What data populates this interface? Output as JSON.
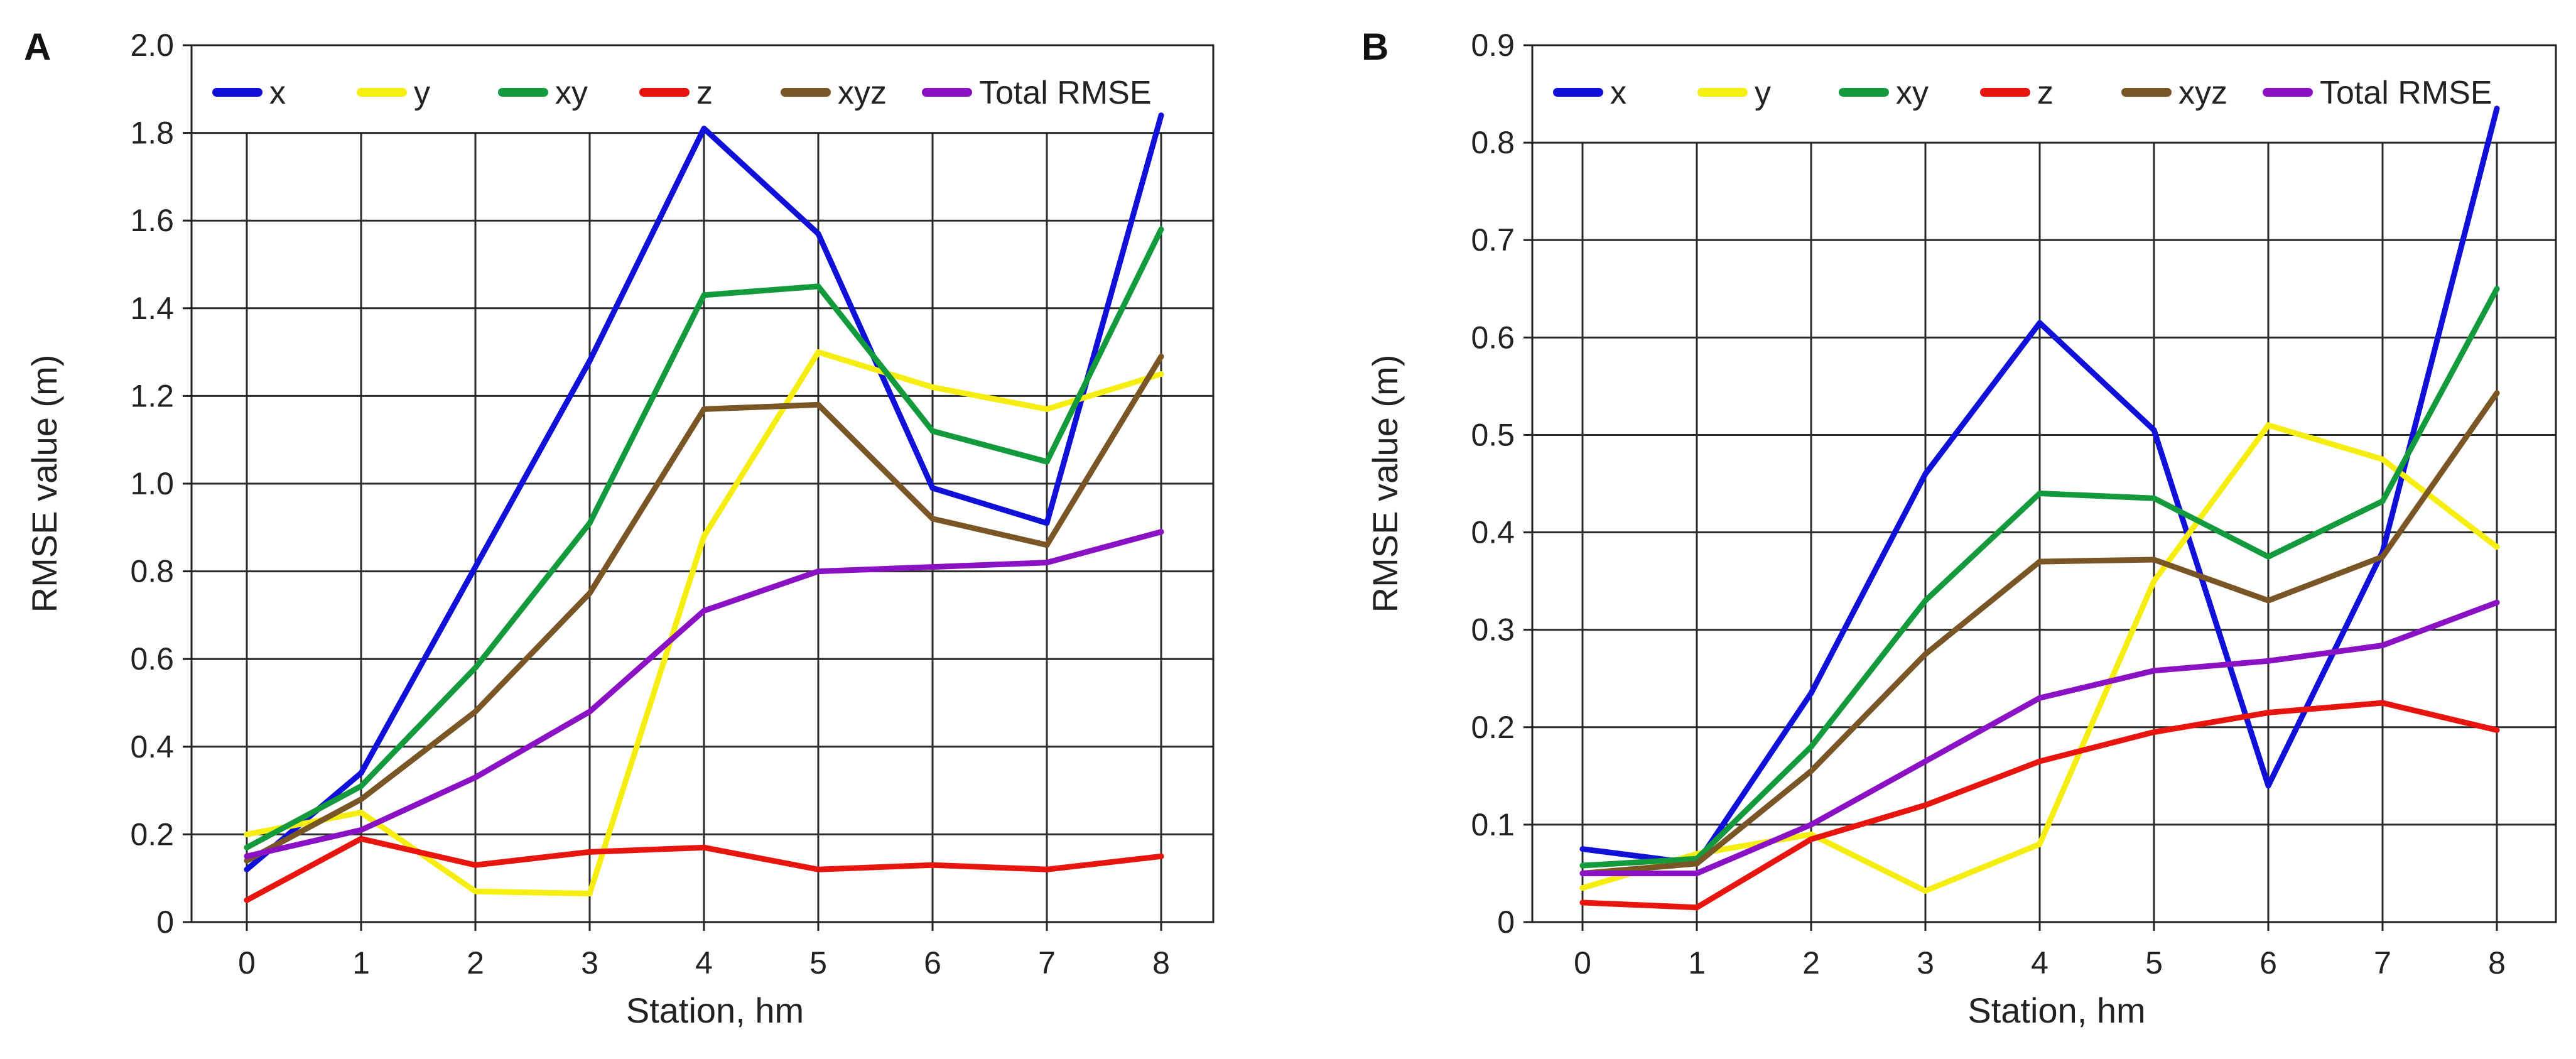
{
  "chart_data": [
    {
      "panel": "A",
      "type": "line",
      "title": "",
      "xlabel": "Station, hm",
      "ylabel": "RMSE value (m)",
      "categories": [
        "0",
        "1",
        "2",
        "3",
        "4",
        "5",
        "6",
        "7",
        "8"
      ],
      "x": [
        0,
        1,
        2,
        3,
        4,
        5,
        6,
        7,
        8
      ],
      "xlim": [
        -0.5,
        8.5
      ],
      "ylim": [
        0,
        2.0
      ],
      "yticks": [
        "0",
        "0.2",
        "0.4",
        "0.6",
        "0.8",
        "1.0",
        "1.2",
        "1.4",
        "1.6",
        "1.8",
        "2.0"
      ],
      "ytick_values": [
        0,
        0.2,
        0.4,
        0.6,
        0.8,
        1.0,
        1.2,
        1.4,
        1.6,
        1.8,
        2.0
      ],
      "grid": true,
      "legend_position": "top",
      "series": [
        {
          "name": "x",
          "color": "#1010d8",
          "values": [
            0.12,
            0.34,
            0.81,
            1.28,
            1.81,
            1.57,
            0.99,
            0.91,
            1.84
          ]
        },
        {
          "name": "y",
          "color": "#f5ee10",
          "values": [
            0.2,
            0.25,
            0.07,
            0.065,
            0.88,
            1.3,
            1.22,
            1.17,
            1.25
          ]
        },
        {
          "name": "xy",
          "color": "#139a3c",
          "values": [
            0.17,
            0.31,
            0.58,
            0.91,
            1.43,
            1.45,
            1.12,
            1.05,
            1.58
          ]
        },
        {
          "name": "z",
          "color": "#e8150f",
          "values": [
            0.05,
            0.19,
            0.13,
            0.16,
            0.17,
            0.12,
            0.13,
            0.12,
            0.15
          ]
        },
        {
          "name": "xyz",
          "color": "#7a5525",
          "values": [
            0.14,
            0.28,
            0.48,
            0.75,
            1.17,
            1.18,
            0.92,
            0.86,
            1.29
          ]
        },
        {
          "name": "Total RMSE",
          "color": "#8b12c4",
          "values": [
            0.15,
            0.21,
            0.33,
            0.48,
            0.71,
            0.8,
            0.81,
            0.82,
            0.89
          ]
        }
      ]
    },
    {
      "panel": "B",
      "type": "line",
      "title": "",
      "xlabel": "Station, hm",
      "ylabel": "RMSE value (m)",
      "categories": [
        "0",
        "1",
        "2",
        "3",
        "4",
        "5",
        "6",
        "7",
        "8"
      ],
      "x": [
        0,
        1,
        2,
        3,
        4,
        5,
        6,
        7,
        8
      ],
      "xlim": [
        -0.5,
        8.5
      ],
      "ylim": [
        0,
        0.9
      ],
      "yticks": [
        "0",
        "0.1",
        "0.2",
        "0.3",
        "0.4",
        "0.5",
        "0.6",
        "0.7",
        "0.8",
        "0.9"
      ],
      "ytick_values": [
        0,
        0.1,
        0.2,
        0.3,
        0.4,
        0.5,
        0.6,
        0.7,
        0.8,
        0.9
      ],
      "grid": true,
      "legend_position": "top",
      "series": [
        {
          "name": "x",
          "color": "#1010d8",
          "values": [
            0.075,
            0.06,
            0.235,
            0.46,
            0.615,
            0.505,
            0.14,
            0.38,
            0.835
          ]
        },
        {
          "name": "y",
          "color": "#f5ee10",
          "values": [
            0.035,
            0.07,
            0.09,
            0.032,
            0.08,
            0.35,
            0.51,
            0.475,
            0.385
          ]
        },
        {
          "name": "xy",
          "color": "#139a3c",
          "values": [
            0.058,
            0.065,
            0.18,
            0.33,
            0.44,
            0.435,
            0.375,
            0.432,
            0.65
          ]
        },
        {
          "name": "z",
          "color": "#e8150f",
          "values": [
            0.02,
            0.015,
            0.085,
            0.12,
            0.165,
            0.195,
            0.215,
            0.225,
            0.197
          ]
        },
        {
          "name": "xyz",
          "color": "#7a5525",
          "values": [
            0.05,
            0.06,
            0.155,
            0.275,
            0.37,
            0.372,
            0.33,
            0.375,
            0.543
          ]
        },
        {
          "name": "Total RMSE",
          "color": "#8b12c4",
          "values": [
            0.05,
            0.05,
            0.1,
            0.165,
            0.23,
            0.258,
            0.268,
            0.284,
            0.328
          ]
        }
      ]
    }
  ]
}
